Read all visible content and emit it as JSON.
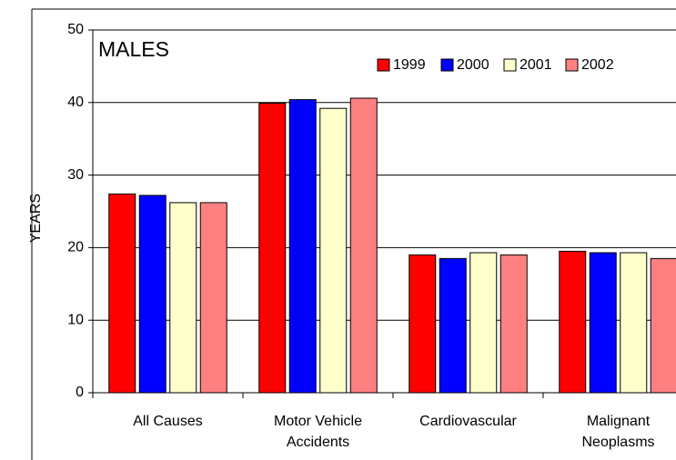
{
  "chart_data": {
    "type": "bar",
    "title": "MALES",
    "ylabel": "YEARS",
    "categories": [
      "All Causes",
      "Motor Vehicle\nAccidents",
      "Cardiovascular",
      "Malignant\nNeoplasms"
    ],
    "series": [
      {
        "name": "1999",
        "color": "#ff0000",
        "values": [
          27.4,
          39.9,
          19.0,
          19.5
        ]
      },
      {
        "name": "2000",
        "color": "#0000ff",
        "values": [
          27.2,
          40.4,
          18.5,
          19.3
        ]
      },
      {
        "name": "2001",
        "color": "#ffffcc",
        "values": [
          26.2,
          39.2,
          19.3,
          19.3
        ]
      },
      {
        "name": "2002",
        "color": "#ff8080",
        "values": [
          26.2,
          40.6,
          19.0,
          18.5
        ]
      }
    ],
    "ylim": [
      0,
      50
    ],
    "yticks": [
      0,
      10,
      20,
      30,
      40,
      50
    ],
    "grid": true,
    "legend": "top-right"
  }
}
